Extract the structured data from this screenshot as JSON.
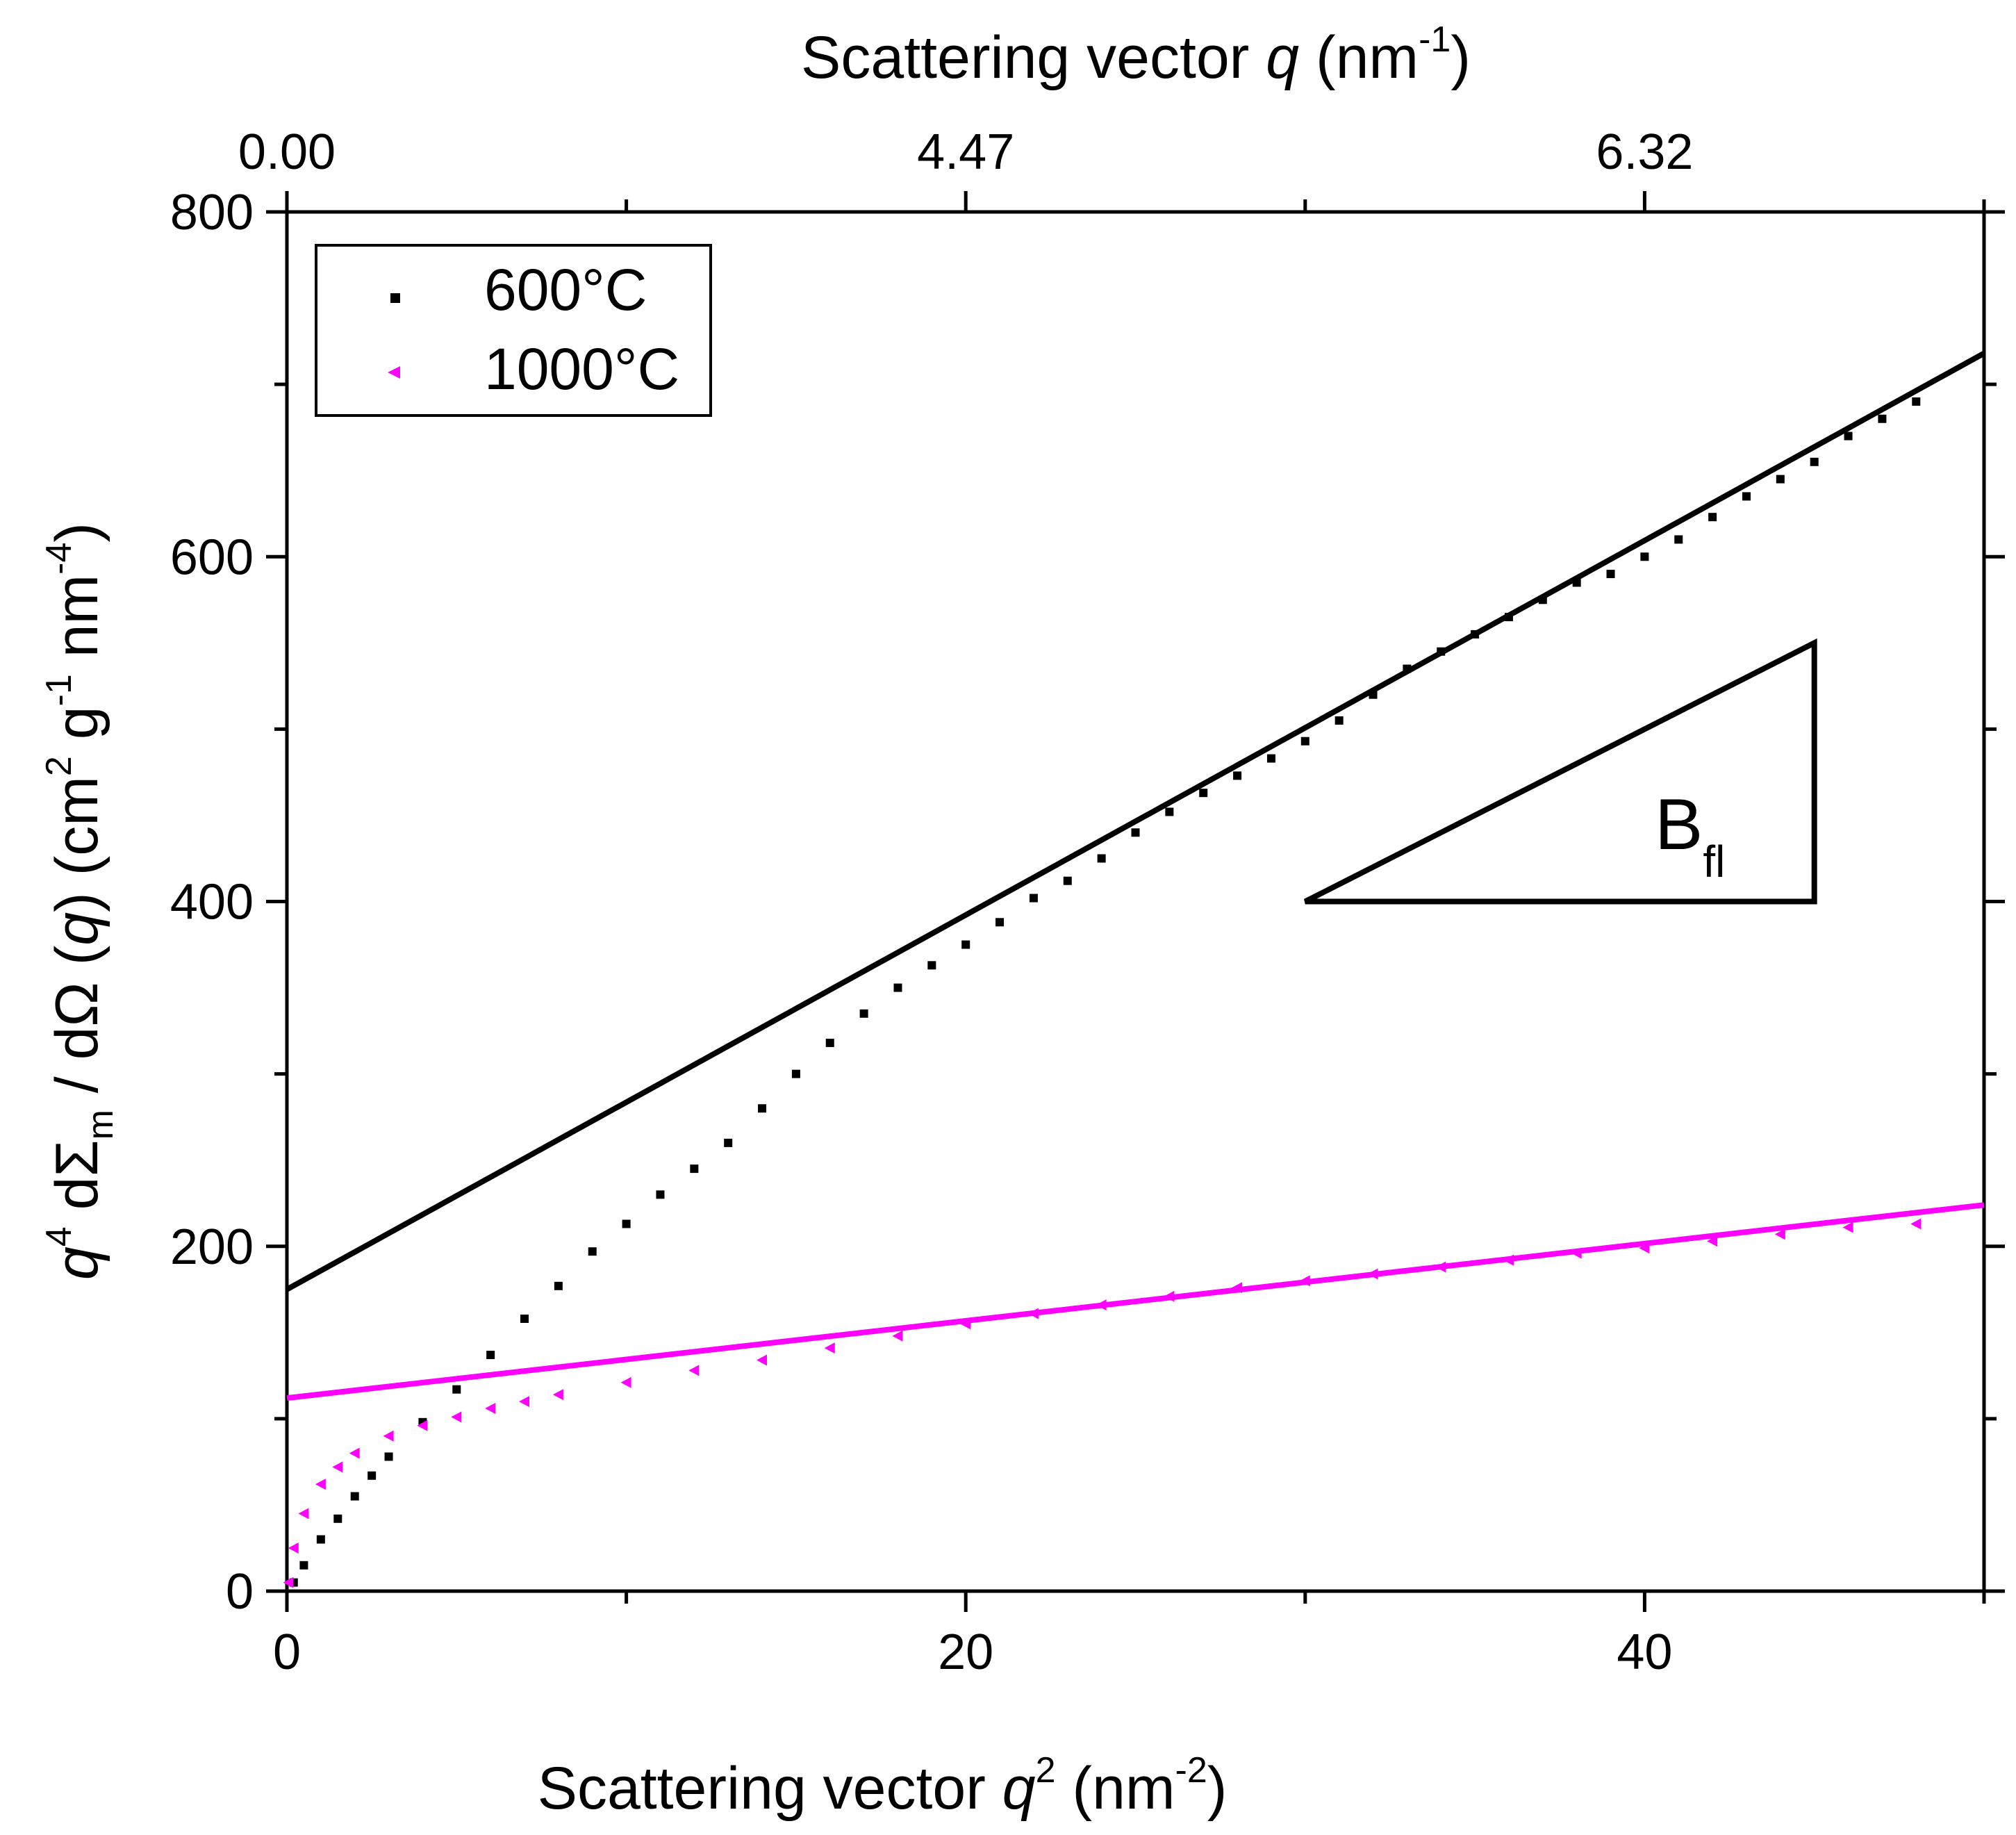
{
  "chart_data": {
    "type": "scatter",
    "title": "",
    "xlabel_parts": [
      "Scattering vector ",
      "q",
      "2",
      " (nm",
      "-2",
      ")"
    ],
    "x2label_parts": [
      "Scattering vector ",
      "q",
      " (nm",
      "-1",
      ")"
    ],
    "ylabel_parts": [
      "q",
      "4",
      " dΣ",
      "m",
      " / dΩ (",
      "q",
      ") (cm",
      "2",
      " g",
      "-1",
      " nm",
      "-4",
      ")"
    ],
    "xlim": [
      0,
      50
    ],
    "ylim": [
      0,
      800
    ],
    "x_ticks": [
      0,
      20,
      40
    ],
    "x_tick_labels": [
      "0",
      "20",
      "40"
    ],
    "x_minor_ticks": [
      10,
      30,
      50
    ],
    "y_ticks": [
      0,
      200,
      400,
      600,
      800
    ],
    "y_tick_labels": [
      "0",
      "200",
      "400",
      "600",
      "800"
    ],
    "y_minor_ticks": [
      100,
      300,
      500,
      700
    ],
    "top_axis_ticks_q2": [
      0,
      20,
      40
    ],
    "top_axis_tick_labels": [
      "0.00",
      "4.47",
      "6.32"
    ],
    "top_axis_minor_ticks_q2": [
      10,
      30,
      50
    ],
    "legend": {
      "position": "top-left",
      "entries": [
        {
          "label": "600°C",
          "marker": "square",
          "color": "#000000"
        },
        {
          "label": "1000°C",
          "marker": "triangle-left",
          "color": "#ff00ff"
        }
      ]
    },
    "series": [
      {
        "name": "600°C",
        "marker": "square",
        "color": "#000000",
        "x": [
          0.2,
          0.5,
          1.0,
          1.5,
          2.0,
          2.5,
          3.0,
          4.0,
          5.0,
          6.0,
          7.0,
          8.0,
          9.0,
          10.0,
          11.0,
          12.0,
          13.0,
          14.0,
          15.0,
          16.0,
          17.0,
          18.0,
          19.0,
          20.0,
          21.0,
          22.0,
          23.0,
          24.0,
          25.0,
          26.0,
          27.0,
          28.0,
          29.0,
          30.0,
          31.0,
          32.0,
          33.0,
          34.0,
          35.0,
          36.0,
          37.0,
          38.0,
          39.0,
          40.0,
          41.0,
          42.0,
          43.0,
          44.0,
          45.0,
          46.0,
          47.0,
          48.0
        ],
        "y": [
          5,
          15,
          30,
          42,
          55,
          67,
          78,
          98,
          117,
          137,
          158,
          177,
          197,
          213,
          230,
          245,
          260,
          280,
          300,
          318,
          335,
          350,
          363,
          375,
          388,
          402,
          412,
          425,
          440,
          452,
          463,
          473,
          483,
          493,
          505,
          520,
          535,
          545,
          555,
          565,
          575,
          585,
          590,
          600,
          610,
          623,
          635,
          645,
          655,
          670,
          680,
          690
        ]
      },
      {
        "name": "1000°C",
        "marker": "triangle-left",
        "color": "#ff00ff",
        "x": [
          0.05,
          0.2,
          0.5,
          1.0,
          1.5,
          2.0,
          3.0,
          4.0,
          5.0,
          6.0,
          7.0,
          8.0,
          10.0,
          12.0,
          14.0,
          16.0,
          18.0,
          20.0,
          22.0,
          24.0,
          26.0,
          28.0,
          30.0,
          32.0,
          34.0,
          36.0,
          38.0,
          40.0,
          42.0,
          44.0,
          46.0,
          48.0
        ],
        "y": [
          5,
          25,
          45,
          62,
          72,
          80,
          90,
          96,
          101,
          106,
          110,
          114,
          121,
          128,
          134,
          141,
          148,
          155,
          161,
          166,
          171,
          176,
          180,
          184,
          188,
          192,
          196,
          199,
          203,
          207,
          211,
          213
        ]
      }
    ],
    "fit_lines": [
      {
        "name": "600°C fit",
        "color": "#000000",
        "x": [
          0,
          50
        ],
        "y": [
          175,
          718
        ]
      },
      {
        "name": "1000°C fit",
        "color": "#ff00ff",
        "x": [
          0,
          50
        ],
        "y": [
          112,
          224
        ]
      }
    ],
    "annotations": [
      {
        "type": "slope-triangle",
        "label_main": "B",
        "label_sub": "fl",
        "vertices": [
          [
            30,
            400
          ],
          [
            45,
            400
          ],
          [
            45,
            550
          ]
        ]
      }
    ]
  }
}
